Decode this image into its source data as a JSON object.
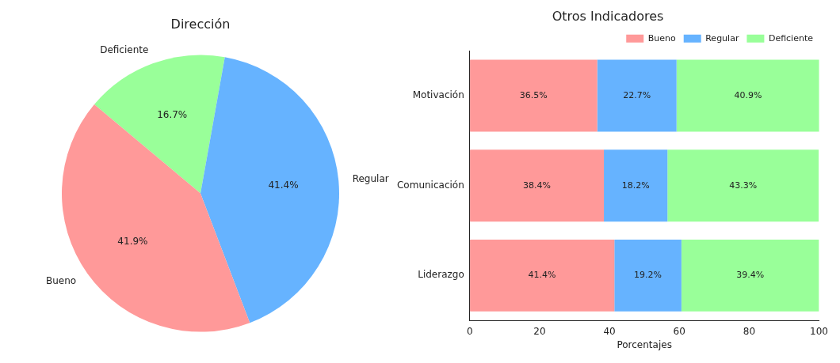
{
  "chart_data": [
    {
      "type": "pie",
      "title": "Dirección",
      "categories": [
        "Bueno",
        "Regular",
        "Deficiente"
      ],
      "values": [
        41.9,
        41.4,
        16.7
      ],
      "colors": [
        "#ff9999",
        "#66b3ff",
        "#99ff99"
      ],
      "value_labels": [
        "41.9%",
        "41.4%",
        "16.7%"
      ]
    },
    {
      "type": "bar",
      "orientation": "horizontal",
      "stacked": true,
      "title": "Otros Indicadores",
      "xlabel": "Porcentajes",
      "categories": [
        "Motivación",
        "Comunicación",
        "Liderazgo"
      ],
      "xlim": [
        0,
        100
      ],
      "xticks": [
        0,
        20,
        40,
        60,
        80,
        100
      ],
      "grid": false,
      "legend": "top right",
      "series": [
        {
          "name": "Bueno",
          "color": "#ff9999",
          "values": [
            36.5,
            38.4,
            41.4
          ],
          "value_labels": [
            "36.5%",
            "38.4%",
            "41.4%"
          ]
        },
        {
          "name": "Regular",
          "color": "#66b3ff",
          "values": [
            22.7,
            18.2,
            19.2
          ],
          "value_labels": [
            "22.7%",
            "18.2%",
            "19.2%"
          ]
        },
        {
          "name": "Deficiente",
          "color": "#99ff99",
          "values": [
            40.9,
            43.3,
            39.4
          ],
          "value_labels": [
            "40.9%",
            "43.3%",
            "39.4%"
          ]
        }
      ]
    }
  ]
}
